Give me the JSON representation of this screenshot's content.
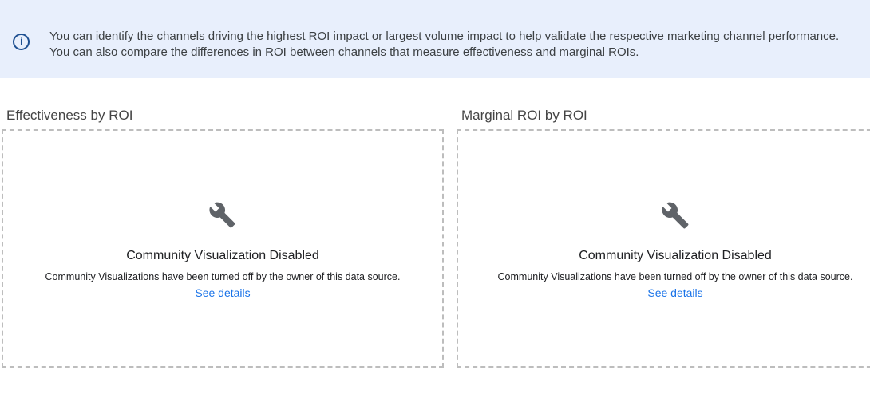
{
  "banner": {
    "icon": "info-icon",
    "text": "You can identify the channels driving the highest ROI impact or largest volume impact to help validate the respective marketing channel performance. You can also compare the differences in ROI between channels that measure effectiveness and marginal ROIs."
  },
  "panels": [
    {
      "title": "Effectiveness by ROI",
      "icon": "wrench-icon",
      "heading": "Community Visualization Disabled",
      "message": "Community Visualizations have been turned off by the owner of this data source.",
      "link": "See details"
    },
    {
      "title": "Marginal ROI by ROI",
      "icon": "wrench-icon",
      "heading": "Community Visualization Disabled",
      "message": "Community Visualizations have been turned off by the owner of this data source.",
      "link": "See details"
    }
  ]
}
